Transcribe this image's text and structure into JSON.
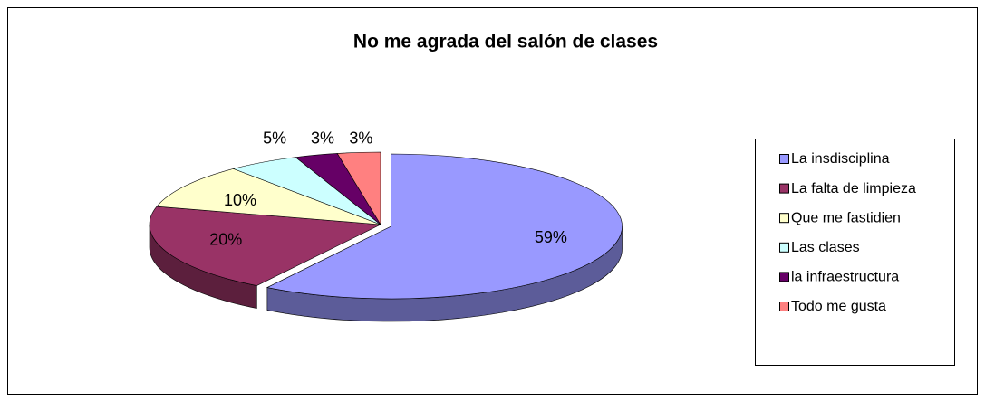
{
  "chart_data": {
    "type": "pie",
    "title": "No me agrada del salón de clases",
    "categories": [
      "La insdisciplina",
      "La falta de limpieza",
      "Que me fastidien",
      "Las clases",
      "la infraestructura",
      "Todo me gusta"
    ],
    "values": [
      59,
      20,
      10,
      5,
      3,
      3
    ],
    "value_labels": [
      "59%",
      "20%",
      "10%",
      "5%",
      "3%",
      "3%"
    ],
    "colors": [
      "#9999ff",
      "#993366",
      "#ffffcc",
      "#ccffff",
      "#660066",
      "#ff8080"
    ],
    "legend": "right"
  }
}
